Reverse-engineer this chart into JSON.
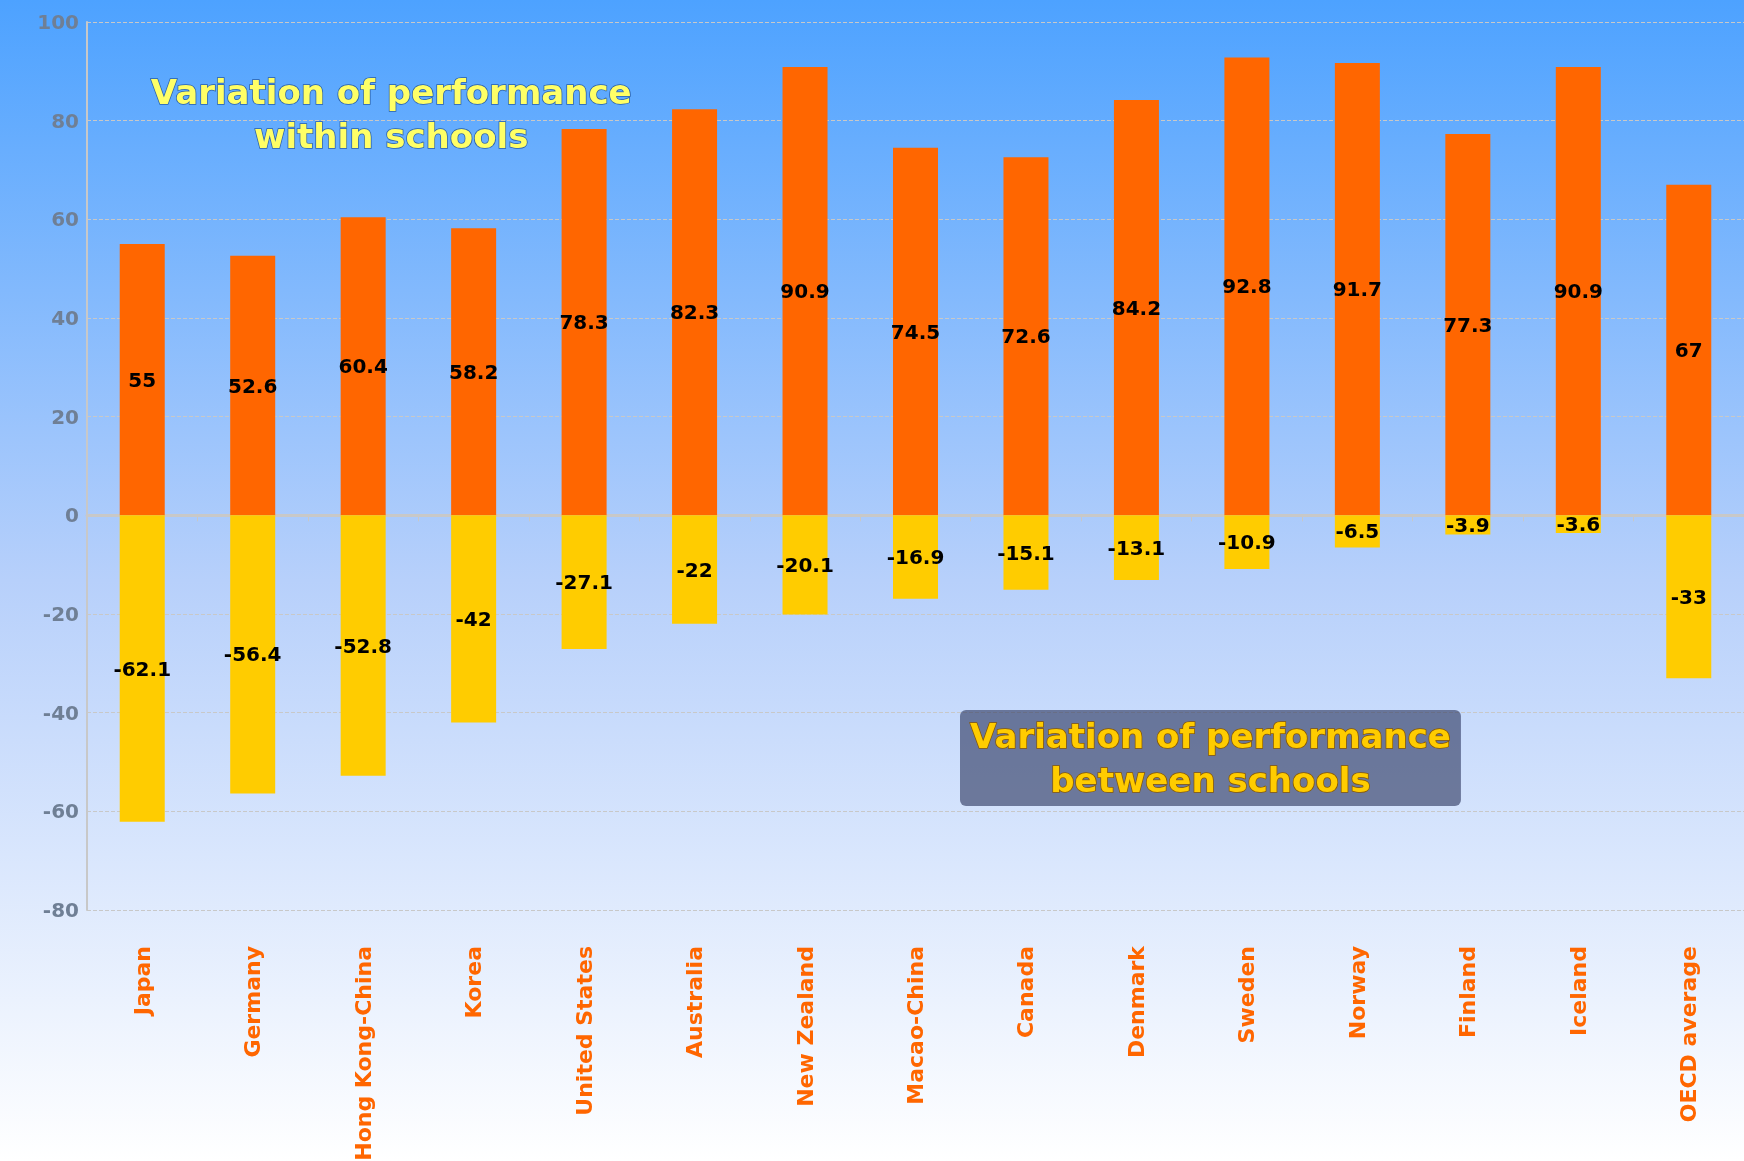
{
  "chart_data": {
    "type": "bar",
    "categories": [
      "Japan",
      "Germany",
      "Hong Kong-China",
      "Korea",
      "United States",
      "Australia",
      "New Zealand",
      "Macao-China",
      "Canada",
      "Denmark",
      "Sweden",
      "Norway",
      "Finland",
      "Iceland",
      "OECD average"
    ],
    "series": [
      {
        "name": "Variation of performance within schools",
        "color": "#ff6600",
        "values": [
          55,
          52.6,
          60.4,
          58.2,
          78.3,
          82.3,
          90.9,
          74.5,
          72.6,
          84.2,
          92.8,
          91.7,
          77.3,
          90.9,
          67
        ]
      },
      {
        "name": "Variation of performance between schools",
        "color": "#ffcc00",
        "values": [
          -62.1,
          -56.4,
          -52.8,
          -42,
          -27.1,
          -22,
          -20.1,
          -16.9,
          -15.1,
          -13.1,
          -10.9,
          -6.5,
          -3.9,
          -3.6,
          -33
        ]
      }
    ],
    "stacked": true,
    "data_labels": true,
    "ylim": [
      -80,
      100
    ],
    "yticks": [
      -80,
      -60,
      -40,
      -20,
      0,
      20,
      40,
      60,
      80,
      100
    ],
    "grid": "y",
    "legend": false
  }
}
